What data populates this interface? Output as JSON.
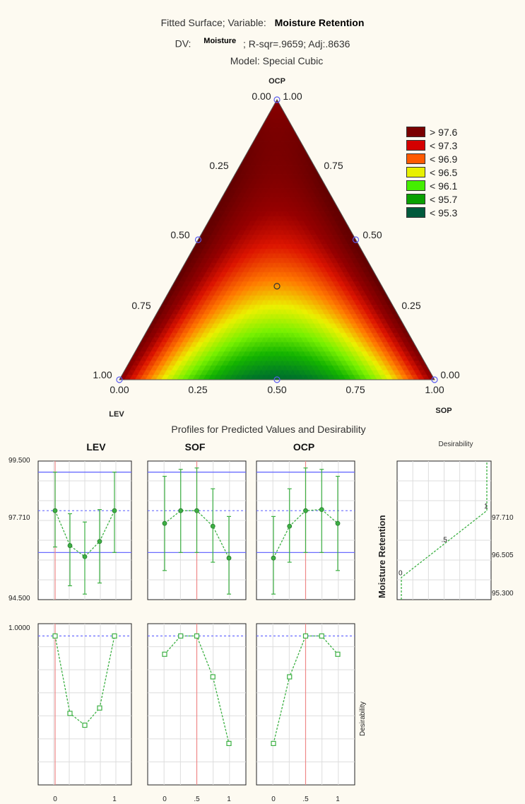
{
  "header": {
    "line1_prefix": "Fitted Surface; Variable:",
    "line1_var": "Moisture Retention",
    "line2_prefix": "DV:",
    "line2_dv": "Moisture",
    "line2_suffix": "; R-sqr=.9659; Adj:.8636",
    "line3": "Model: Special Cubic"
  },
  "ternary": {
    "vertex_top": "OCP",
    "vertex_left": "LEV",
    "vertex_right": "SOP",
    "top_tick": "0.00",
    "top_tick_right": "1.00",
    "left_ticks": [
      "1.00",
      "0.75",
      "0.50",
      "0.25",
      "0.00"
    ],
    "right_ticks": [
      "0.00",
      "0.25",
      "0.50",
      "0.75",
      "1.00"
    ],
    "bottom_ticks": [
      "0.00",
      "0.25",
      "0.50",
      "0.75",
      "1.00"
    ],
    "design_points": [
      [
        1,
        0,
        0
      ],
      [
        0,
        1,
        0
      ],
      [
        0,
        0,
        1
      ],
      [
        0.5,
        0.5,
        0
      ],
      [
        0.5,
        0,
        0.5
      ],
      [
        0,
        0.5,
        0.5
      ],
      [
        0.333,
        0.333,
        0.334
      ]
    ]
  },
  "legend": {
    "items": [
      {
        "label": "> 97.6",
        "color": "#7a0000"
      },
      {
        "label": "< 97.3",
        "color": "#d40000"
      },
      {
        "label": "< 96.9",
        "color": "#ff5a00"
      },
      {
        "label": "< 96.5",
        "color": "#e8f000"
      },
      {
        "label": "< 96.1",
        "color": "#44ee00"
      },
      {
        "label": "< 95.7",
        "color": "#0aa000"
      },
      {
        "label": "< 95.3",
        "color": "#005a3c"
      }
    ]
  },
  "profiles": {
    "title": "Profiles for Predicted Values and Desirability",
    "panel_titles": [
      "LEV",
      "SOF",
      "OCP"
    ],
    "y_top_labels": [
      "99.500",
      "97.710",
      "94.500"
    ],
    "y_bottom_label": "1.0000",
    "x_ticks": [
      [
        "0",
        "",
        "",
        "",
        "1"
      ],
      [
        "0",
        "",
        ".5",
        "",
        "1"
      ],
      [
        "0",
        "",
        ".5",
        "",
        "1"
      ]
    ],
    "desirability_title": "Desirability",
    "y_axis_label": "Moisture Retention",
    "desirability_y_label": "Desirability",
    "desirability_right_ticks": [
      "97.710",
      "96.505",
      "95.300"
    ],
    "desirability_points": [
      "0",
      ".5",
      "1"
    ]
  },
  "chart_data": [
    {
      "type": "heatmap",
      "title": "Fitted Surface; Variable: Moisture Retention",
      "subtitle": "DV: Moisture ; R-sqr=.9659; Adj:.8636 ; Model: Special Cubic",
      "components": [
        "LEV",
        "SOP",
        "OCP"
      ],
      "levels": [
        ">97.6",
        "<97.3",
        "<96.9",
        "<96.5",
        "<96.1",
        "<95.7",
        "<95.3"
      ],
      "description_values": {
        "vertex_LEV": 97.7,
        "vertex_SOP": 97.7,
        "vertex_OCP": 97.7,
        "mid_LEV_SOP": 95.2,
        "centroid": 96.6
      }
    },
    {
      "type": "line",
      "title": "LEV",
      "x": [
        0,
        0.25,
        0.5,
        0.75,
        1
      ],
      "series": [
        {
          "values": [
            97.71,
            96.45,
            96.05,
            96.6,
            97.71
          ],
          "ci_low": [
            96.4,
            95.0,
            94.7,
            95.1,
            96.2
          ],
          "ci_high": [
            99.1,
            97.6,
            97.3,
            97.75,
            99.1
          ]
        }
      ],
      "ylim": [
        94.5,
        99.5
      ],
      "current_x": 0
    },
    {
      "type": "line",
      "title": "SOF",
      "x": [
        0,
        0.25,
        0.5,
        0.75,
        1
      ],
      "series": [
        {
          "values": [
            97.25,
            97.71,
            97.71,
            97.15,
            96.0
          ],
          "ci_low": [
            95.55,
            96.2,
            96.2,
            95.85,
            94.7
          ],
          "ci_high": [
            98.95,
            99.2,
            99.25,
            98.5,
            97.5
          ]
        }
      ],
      "ylim": [
        94.5,
        99.5
      ],
      "current_x": 0.5
    },
    {
      "type": "line",
      "title": "OCP",
      "x": [
        0,
        0.25,
        0.5,
        0.75,
        1
      ],
      "series": [
        {
          "values": [
            96.0,
            97.15,
            97.71,
            97.75,
            97.25
          ],
          "ci_low": [
            94.7,
            95.85,
            96.2,
            96.2,
            95.55
          ],
          "ci_high": [
            97.5,
            98.5,
            99.25,
            99.2,
            98.95
          ]
        }
      ],
      "ylim": [
        94.5,
        99.5
      ],
      "current_x": 0.5
    },
    {
      "type": "line",
      "title": "Desirability LEV",
      "x": [
        0,
        0.25,
        0.5,
        0.75,
        1
      ],
      "values": [
        1.0,
        0.28,
        0.17,
        0.33,
        1.0
      ],
      "ylim": [
        -0.3,
        1.2
      ]
    },
    {
      "type": "line",
      "title": "Desirability SOF",
      "x": [
        0,
        0.25,
        0.5,
        0.75,
        1
      ],
      "values": [
        0.83,
        1.0,
        1.0,
        0.62,
        0.0
      ],
      "ylim": [
        -0.3,
        1.2
      ]
    },
    {
      "type": "line",
      "title": "Desirability OCP",
      "x": [
        0,
        0.25,
        0.5,
        0.75,
        1
      ],
      "values": [
        0.0,
        0.62,
        1.0,
        1.0,
        0.83
      ],
      "ylim": [
        -0.3,
        1.2
      ]
    },
    {
      "type": "line",
      "title": "Desirability",
      "x": [
        0,
        0.5,
        1
      ],
      "y_values": [
        95.3,
        96.505,
        97.71
      ],
      "desirability": [
        0,
        0.5,
        1
      ]
    }
  ]
}
